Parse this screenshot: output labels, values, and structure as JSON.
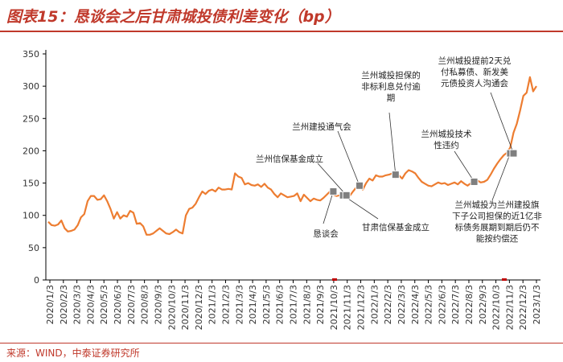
{
  "title": "图表15：恳谈会之后甘肃城投债利差变化（bp）",
  "source": "来源：WIND，中泰证券研究所",
  "chart_data": {
    "type": "line",
    "ylim": [
      0,
      350
    ],
    "yticks": [
      0,
      50,
      100,
      150,
      200,
      250,
      300,
      350
    ],
    "line_color": "#ed7d31",
    "marker_color": "#7f7f7f",
    "x_tick_labels": [
      "2020/1/3",
      "2020/2/3",
      "2020/3/3",
      "2020/4/3",
      "2020/5/3",
      "2020/6/3",
      "2020/7/3",
      "2020/8/3",
      "2020/9/3",
      "2020/10/3",
      "2020/11/3",
      "2020/12/3",
      "2021/1/3",
      "2021/2/3",
      "2021/3/3",
      "2021/4/3",
      "2021/5/3",
      "2021/6/3",
      "2021/7/3",
      "2021/8/3",
      "2021/9/3",
      "2021/10/3",
      "2021/11/3",
      "2021/12/3",
      "2022/1/3",
      "2022/2/3",
      "2022/3/3",
      "2022/4/3",
      "2022/5/3",
      "2022/6/3",
      "2022/7/3",
      "2022/8/3",
      "2022/9/3",
      "2022/10/3",
      "2022/11/3",
      "2022/12/3",
      "2023/1/3"
    ],
    "series": [
      {
        "values": [
          90,
          85,
          84,
          86,
          92,
          80,
          75,
          76,
          78,
          85,
          97,
          102,
          122,
          130,
          130,
          124,
          125,
          131,
          122,
          110,
          95,
          105,
          95,
          100,
          98,
          107,
          104,
          87,
          88,
          83,
          70,
          70,
          72,
          76,
          80,
          76,
          72,
          71,
          74,
          78,
          74,
          72,
          100,
          110,
          112,
          118,
          128,
          137,
          133,
          138,
          140,
          137,
          143,
          140,
          140,
          141,
          140,
          165,
          160,
          158,
          148,
          150,
          147,
          146,
          148,
          144,
          149,
          143,
          140,
          133,
          128,
          134,
          131,
          128,
          129,
          130,
          134,
          122,
          132,
          127,
          122,
          126,
          124,
          123,
          127,
          132,
          137,
          132,
          130,
          131,
          133,
          133,
          130,
          137,
          143,
          146,
          140,
          150,
          157,
          154,
          162,
          160,
          160,
          162,
          163,
          165,
          158,
          162,
          157,
          165,
          170,
          168,
          165,
          158,
          152,
          149,
          146,
          145,
          148,
          151,
          149,
          150,
          147,
          149,
          151,
          148,
          153,
          149,
          146,
          150,
          149,
          154,
          151,
          152,
          155,
          163,
          172,
          180,
          187,
          193,
          197,
          205,
          228,
          242,
          262,
          285,
          290,
          314,
          292,
          300
        ]
      }
    ],
    "annotations": [
      {
        "label": "恳谈会",
        "value": 137
      },
      {
        "label": "甘肃信保基金成立",
        "value": 131
      },
      {
        "label": "兰州信保基金成立",
        "value": 131
      },
      {
        "label": "兰州建投通气会",
        "value": 146
      },
      {
        "label": "兰州城投担保的非标利息兑付逾期",
        "value": 163
      },
      {
        "label": "兰州城投技术性违约",
        "value": 152
      },
      {
        "label": "兰州城投为兰州建投旗下子公司担保的近1亿非标债务展期到期后仍不能按约偿还",
        "value": 196
      },
      {
        "label": "兰州城投提前2天兑付私募债、新发美元债投资人沟通会",
        "value": 196
      }
    ]
  }
}
